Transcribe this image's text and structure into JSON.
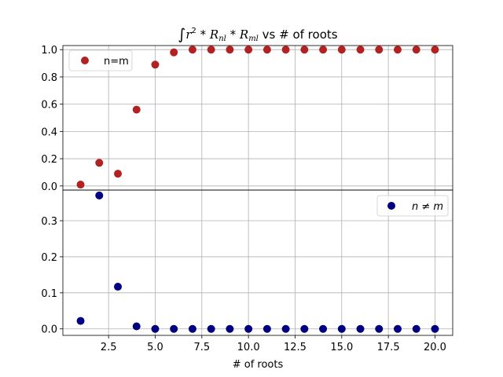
{
  "chart_data": [
    {
      "type": "scatter",
      "panel": "top",
      "title": "∫r² * R_nl * R_ml vs # of roots",
      "xlabel": "",
      "ylabel": "",
      "xlim": [
        0.05,
        20.95
      ],
      "ylim": [
        -0.03,
        1.03
      ],
      "xticks": [
        2.5,
        5.0,
        7.5,
        10.0,
        12.5,
        15.0,
        17.5,
        20.0
      ],
      "xticks_visible": false,
      "yticks": [
        0.0,
        0.2,
        0.4,
        0.6,
        0.8,
        1.0
      ],
      "ytick_labels": [
        "0.0",
        "0.2",
        "0.4",
        "0.6",
        "0.8",
        "1.0"
      ],
      "grid": true,
      "legend_position": "upper left",
      "series": [
        {
          "name": "n=m",
          "color": "#b22222",
          "x": [
            1,
            2,
            3,
            4,
            5,
            6,
            7,
            8,
            9,
            10,
            11,
            12,
            13,
            14,
            15,
            16,
            17,
            18,
            19,
            20
          ],
          "y": [
            0.01,
            0.17,
            0.09,
            0.56,
            0.89,
            0.98,
            1.0,
            1.0,
            1.0,
            1.0,
            1.0,
            1.0,
            1.0,
            1.0,
            1.0,
            1.0,
            1.0,
            1.0,
            1.0,
            1.0
          ]
        }
      ]
    },
    {
      "type": "scatter",
      "panel": "bottom",
      "title": "",
      "xlabel": "# of roots",
      "ylabel": "",
      "xlim": [
        0.05,
        20.95
      ],
      "ylim": [
        -0.018,
        0.385
      ],
      "xticks": [
        2.5,
        5.0,
        7.5,
        10.0,
        12.5,
        15.0,
        17.5,
        20.0
      ],
      "xtick_labels": [
        "2.5",
        "5.0",
        "7.5",
        "10.0",
        "12.5",
        "15.0",
        "17.5",
        "20.0"
      ],
      "xticks_visible": true,
      "yticks": [
        0.0,
        0.1,
        0.2,
        0.3
      ],
      "ytick_labels": [
        "0.0",
        "0.1",
        "0.2",
        "0.3"
      ],
      "grid": true,
      "legend_position": "upper right",
      "series": [
        {
          "name": "n ≠ m",
          "color": "#000080",
          "x": [
            1,
            2,
            3,
            4,
            5,
            6,
            7,
            8,
            9,
            10,
            11,
            12,
            13,
            14,
            15,
            16,
            17,
            18,
            19,
            20
          ],
          "y": [
            0.022,
            0.37,
            0.117,
            0.007,
            0.0,
            0.0,
            0.0,
            0.0,
            0.0,
            0.0,
            0.0,
            0.0,
            0.0,
            0.0,
            0.0,
            0.0,
            0.0,
            0.0,
            0.0,
            0.0
          ]
        }
      ]
    }
  ]
}
